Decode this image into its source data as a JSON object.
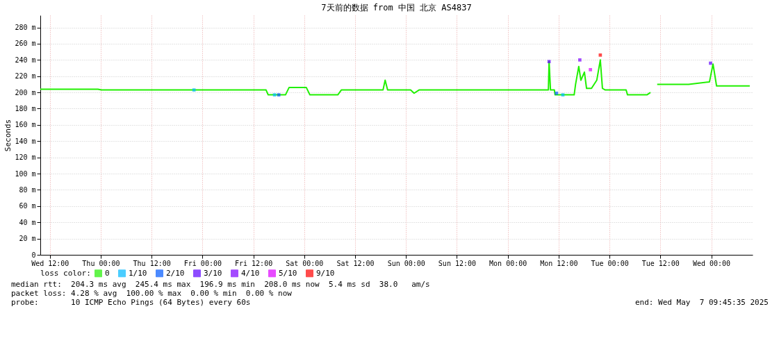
{
  "chart_data": {
    "type": "line",
    "title": "7天前的数据 from 中国 北京 AS4837",
    "ylabel": "Seconds",
    "legend_title": "loss color:",
    "xlim": [
      "2025-04-30T09:45",
      "2025-05-07T09:45"
    ],
    "xticks": [
      {
        "value": "2025-04-30T12:00",
        "label": "Wed 12:00"
      },
      {
        "value": "2025-05-01T00:00",
        "label": "Thu 00:00"
      },
      {
        "value": "2025-05-01T12:00",
        "label": "Thu 12:00"
      },
      {
        "value": "2025-05-02T00:00",
        "label": "Fri 00:00"
      },
      {
        "value": "2025-05-02T12:00",
        "label": "Fri 12:00"
      },
      {
        "value": "2025-05-03T00:00",
        "label": "Sat 00:00"
      },
      {
        "value": "2025-05-03T12:00",
        "label": "Sat 12:00"
      },
      {
        "value": "2025-05-04T00:00",
        "label": "Sun 00:00"
      },
      {
        "value": "2025-05-04T12:00",
        "label": "Sun 12:00"
      },
      {
        "value": "2025-05-05T00:00",
        "label": "Mon 00:00"
      },
      {
        "value": "2025-05-05T12:00",
        "label": "Mon 12:00"
      },
      {
        "value": "2025-05-06T00:00",
        "label": "Tue 00:00"
      },
      {
        "value": "2025-05-06T12:00",
        "label": "Tue 12:00"
      },
      {
        "value": "2025-05-07T00:00",
        "label": "Wed 00:00"
      }
    ],
    "ylim": [
      0,
      295
    ],
    "yticks": [
      0,
      {
        "value": 20,
        "label": "20 m"
      },
      {
        "value": 40,
        "label": "40 m"
      },
      {
        "value": 60,
        "label": "60 m"
      },
      {
        "value": 80,
        "label": "80 m"
      },
      {
        "value": 100,
        "label": "100 m"
      },
      {
        "value": 120,
        "label": "120 m"
      },
      {
        "value": 140,
        "label": "140 m"
      },
      {
        "value": 160,
        "label": "160 m"
      },
      {
        "value": 180,
        "label": "180 m"
      },
      {
        "value": 200,
        "label": "200 m"
      },
      {
        "value": 220,
        "label": "220 m"
      },
      {
        "value": 240,
        "label": "240 m"
      },
      {
        "value": 260,
        "label": "260 m"
      },
      {
        "value": 280,
        "label": "280 m"
      }
    ],
    "grid": true,
    "legend": "bottom",
    "marker": "none",
    "line_style": "solid",
    "series": [
      {
        "name": "0",
        "color": "#20f000",
        "x": [
          "2025-04-30T09:45",
          "2025-04-30T23:20",
          "2025-05-01T00:10",
          "2025-05-02T00:00",
          "2025-05-02T15:00",
          "2025-05-02T15:30",
          "2025-05-02T19:35",
          "2025-05-02T20:25",
          "2025-05-03T00:30",
          "2025-05-03T01:20",
          "2025-05-03T07:55",
          "2025-05-03T08:45",
          "2025-05-03T18:35",
          "2025-05-03T19:05",
          "2025-05-03T19:40",
          "2025-05-04T01:05",
          "2025-05-04T01:55",
          "2025-05-04T03:05",
          "2025-05-05T09:35",
          "2025-05-05T09:45",
          "2025-05-05T10:05",
          "2025-05-05T11:00",
          "2025-05-05T11:10",
          "2025-05-05T15:40",
          "2025-05-05T16:00",
          "2025-05-05T16:45",
          "2025-05-05T17:15",
          "2025-05-05T18:05",
          "2025-05-05T18:35",
          "2025-05-05T19:45",
          "2025-05-05T21:00",
          "2025-05-05T21:50",
          "2025-05-05T22:20",
          "2025-05-05T23:00",
          "2025-05-06T03:55",
          "2025-05-06T04:15",
          "2025-05-06T08:50",
          "2025-05-06T09:40",
          "2025-05-06T10:30",
          "2025-05-06T11:15",
          "2025-05-06T18:40",
          "2025-05-06T23:35",
          "2025-05-07T00:25",
          "2025-05-07T01:15",
          "2025-05-07T09:05"
        ],
        "values": [
          204,
          204,
          203,
          203,
          203,
          197,
          197,
          206,
          206,
          197,
          197,
          203,
          203,
          215,
          203,
          203,
          199,
          203,
          203,
          238,
          203,
          203,
          197,
          197,
          210,
          232,
          215,
          225,
          205,
          205,
          215,
          240,
          205,
          203,
          203,
          197,
          197,
          200,
          null,
          210,
          210,
          213,
          235,
          208,
          208
        ]
      },
      {
        "name": "1/10",
        "type": "scatter",
        "color": "#00b8ff",
        "marker": "square",
        "x": [
          "2025-05-01T22:00",
          "2025-05-02T17:00",
          "2025-05-05T13:00"
        ],
        "values": [
          203,
          197,
          197
        ]
      },
      {
        "name": "2/10",
        "type": "scatter",
        "color": "#0059ff",
        "marker": "square",
        "x": [
          "2025-05-02T18:00",
          "2025-05-05T11:30"
        ],
        "values": [
          197,
          199
        ]
      },
      {
        "name": "3/10",
        "type": "scatter",
        "color": "#5e00ff",
        "marker": "square",
        "x": [
          "2025-05-05T09:45",
          "2025-05-06T23:50"
        ],
        "values": [
          238,
          236
        ]
      },
      {
        "name": "4/10",
        "type": "scatter",
        "color": "#7e00ff",
        "marker": "square",
        "x": [
          "2025-05-05T17:00"
        ],
        "values": [
          240
        ]
      },
      {
        "name": "5/10",
        "type": "scatter",
        "color": "#dd00ff",
        "marker": "square",
        "x": [
          "2025-05-05T19:30"
        ],
        "values": [
          228
        ]
      },
      {
        "name": "9/10",
        "type": "scatter",
        "color": "#ff0000",
        "marker": "square",
        "x": [
          "2025-05-05T21:50"
        ],
        "values": [
          246
        ]
      }
    ],
    "annotations": [
      "median rtt:  204.3 ms avg  245.4 ms max  196.9 ms min  208.0 ms now  5.4 ms sd  38.0   am/s",
      "packet loss: 4.28 % avg  100.00 % max  0.00 % min  0.00 % now",
      "probe:       10 ICMP Echo Pings (64 Bytes) every 60s",
      "end: Wed May  7 09:45:35 2025"
    ]
  }
}
